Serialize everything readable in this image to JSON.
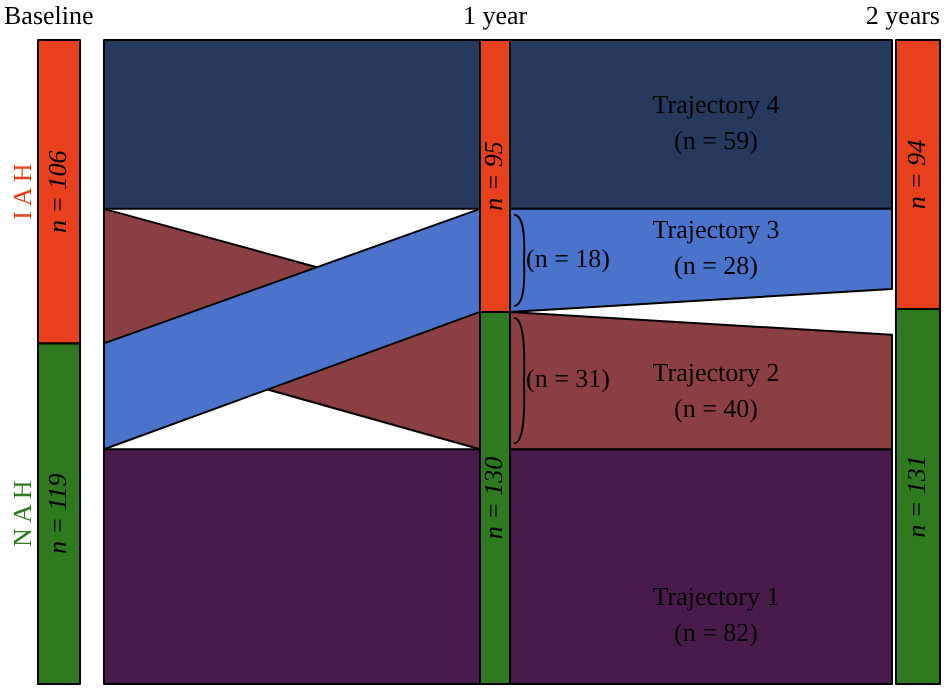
{
  "chart_data": {
    "type": "other",
    "categories": [
      "Baseline",
      "1 year",
      "2 years"
    ],
    "series": [
      {
        "name": "I A H",
        "color": "#e8401c",
        "values": [
          106,
          95,
          94
        ],
        "value_labels": [
          "n = 106",
          "n = 95",
          "n = 94"
        ]
      },
      {
        "name": "N A H",
        "color": "#2e7a1e",
        "values": [
          119,
          130,
          131
        ],
        "value_labels": [
          "n = 119",
          "n = 130",
          "n = 131"
        ]
      },
      {
        "name": "Trajectory 4",
        "color": "#253a5e",
        "values": [
          null,
          null,
          59
        ],
        "value_labels": [
          null,
          null,
          "(n = 59)"
        ]
      },
      {
        "name": "Trajectory 3",
        "color": "#4a74cc",
        "values": [
          null,
          null,
          28
        ],
        "value_labels": [
          null,
          null,
          "(n = 28)"
        ]
      },
      {
        "name": "Trajectory 2",
        "color": "#8c3f42",
        "values": [
          null,
          null,
          40
        ],
        "value_labels": [
          null,
          null,
          "(n = 40)"
        ]
      },
      {
        "name": "Trajectory 1",
        "color": "#4a1a4c",
        "values": [
          null,
          null,
          82
        ],
        "value_labels": [
          null,
          null,
          "(n = 82)"
        ]
      }
    ],
    "annotations": [
      "(n = 18)",
      "(n = 31)"
    ]
  }
}
